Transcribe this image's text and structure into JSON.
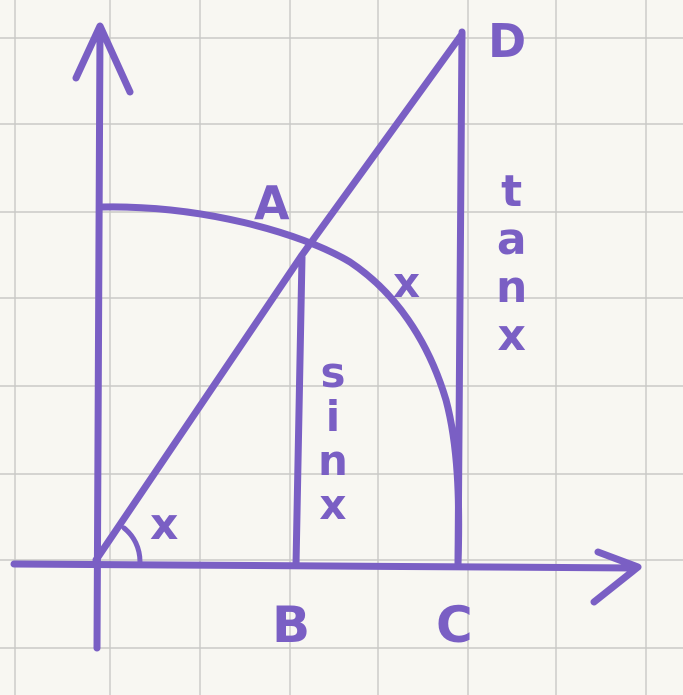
{
  "labels": {
    "point_a": "A",
    "point_b": "B",
    "point_c": "C",
    "point_d": "D",
    "angle": "x",
    "arc": "x"
  },
  "sin_label": [
    "s",
    "i",
    "n",
    "x"
  ],
  "tan_label": [
    "t",
    "a",
    "n",
    "x"
  ],
  "colors": {
    "ink": "#7a5fc4",
    "grid": "#c9c9c6",
    "paper": "#f8f7f2"
  }
}
